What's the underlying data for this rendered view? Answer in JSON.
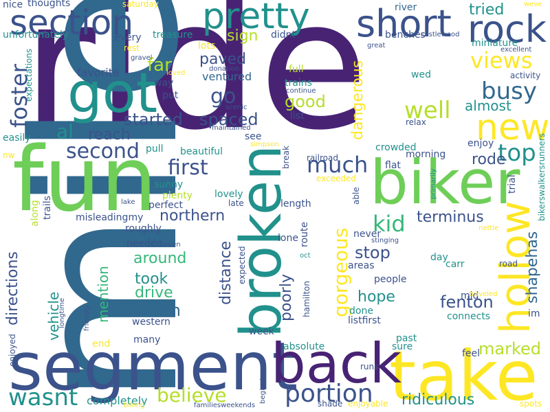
{
  "colors": {
    "dark_purple": "#482374",
    "indigo": "#3b528b",
    "blue": "#31688e",
    "teal_blue": "#2c728e",
    "teal": "#21918c",
    "teal_green": "#1fa088",
    "green": "#35b779",
    "light_green": "#6ece58",
    "lime": "#b5de2b",
    "yellow": "#fde725"
  },
  "words": [
    {
      "text": "ride",
      "color": "dark_purple"
    },
    {
      "text": "mile",
      "color": "blue"
    },
    {
      "text": "fun",
      "color": "light_green"
    },
    {
      "text": "segment",
      "color": "indigo"
    },
    {
      "text": "take",
      "color": "yellow"
    },
    {
      "text": "back",
      "color": "dark_purple"
    },
    {
      "text": "biker",
      "color": "light_green"
    },
    {
      "text": "broken",
      "color": "teal"
    },
    {
      "text": "got",
      "color": "teal"
    },
    {
      "text": "section",
      "color": "indigo"
    },
    {
      "text": "pretty",
      "color": "teal"
    },
    {
      "text": "short",
      "color": "indigo"
    },
    {
      "text": "rock",
      "color": "indigo"
    },
    {
      "text": "new",
      "color": "yellow"
    },
    {
      "text": "hollow",
      "color": "yellow"
    },
    {
      "text": "gorgeous",
      "color": "yellow"
    },
    {
      "text": "foster",
      "color": "indigo"
    },
    {
      "text": "portion",
      "color": "indigo"
    },
    {
      "text": "wasnt",
      "color": "teal"
    },
    {
      "text": "believe",
      "color": "lime"
    },
    {
      "text": "much",
      "color": "indigo"
    },
    {
      "text": "well",
      "color": "lime"
    },
    {
      "text": "second",
      "color": "indigo"
    },
    {
      "text": "first",
      "color": "indigo"
    },
    {
      "text": "busy",
      "color": "blue"
    },
    {
      "text": "top",
      "color": "teal"
    },
    {
      "text": "views",
      "color": "yellow"
    },
    {
      "text": "kid",
      "color": "green"
    },
    {
      "text": "al",
      "color": "teal"
    },
    {
      "text": "reach",
      "color": "indigo"
    },
    {
      "text": "go",
      "color": "indigo"
    },
    {
      "text": "far",
      "color": "lime"
    },
    {
      "text": "paved",
      "color": "indigo"
    },
    {
      "text": "spaced",
      "color": "indigo"
    },
    {
      "text": "started",
      "color": "indigo"
    },
    {
      "text": "northern",
      "color": "indigo"
    },
    {
      "text": "around",
      "color": "green"
    },
    {
      "text": "took",
      "color": "teal"
    },
    {
      "text": "drive",
      "color": "green"
    },
    {
      "text": "south",
      "color": "blue"
    },
    {
      "text": "directions",
      "color": "indigo"
    },
    {
      "text": "vehicle",
      "color": "teal"
    },
    {
      "text": "mention",
      "color": "green"
    },
    {
      "text": "distance",
      "color": "indigo"
    },
    {
      "text": "poorly",
      "color": "indigo"
    },
    {
      "text": "stop",
      "color": "indigo"
    },
    {
      "text": "hope",
      "color": "teal"
    },
    {
      "text": "fenton",
      "color": "indigo"
    },
    {
      "text": "terminus",
      "color": "indigo"
    },
    {
      "text": "shapehas",
      "color": "blue"
    },
    {
      "text": "marked",
      "color": "lime"
    },
    {
      "text": "ridiculous",
      "color": "teal"
    },
    {
      "text": "dangerous",
      "color": "yellow"
    },
    {
      "text": "good",
      "color": "lime"
    },
    {
      "text": "rode",
      "color": "indigo"
    },
    {
      "text": "almost",
      "color": "teal"
    },
    {
      "text": "tried",
      "color": "teal"
    },
    {
      "text": "sign",
      "color": "lime"
    },
    {
      "text": "miniature",
      "color": "teal"
    },
    {
      "text": "ventured",
      "color": "blue"
    },
    {
      "text": "favorite",
      "color": "indigo"
    },
    {
      "text": "thoughts",
      "color": "indigo"
    },
    {
      "text": "nice",
      "color": "indigo"
    },
    {
      "text": "unfortunately",
      "color": "teal"
    },
    {
      "text": "saturday",
      "color": "yellow"
    },
    {
      "text": "river",
      "color": "blue"
    },
    {
      "text": "weve",
      "color": "yellow"
    },
    {
      "text": "benches",
      "color": "indigo"
    },
    {
      "text": "castlewood",
      "color": "indigo"
    },
    {
      "text": "didnt",
      "color": "indigo"
    },
    {
      "text": "treasure",
      "color": "teal"
    },
    {
      "text": "every",
      "color": "indigo"
    },
    {
      "text": "rest",
      "color": "yellow"
    },
    {
      "text": "lots",
      "color": "yellow"
    },
    {
      "text": "great",
      "color": "indigo"
    },
    {
      "text": "excellent",
      "color": "indigo"
    },
    {
      "text": "activity",
      "color": "indigo"
    },
    {
      "text": "wed",
      "color": "teal"
    },
    {
      "text": "relax",
      "color": "indigo"
    },
    {
      "text": "gravel",
      "color": "indigo"
    },
    {
      "text": "loved",
      "color": "yellow"
    },
    {
      "text": "way",
      "color": "indigo"
    },
    {
      "text": "put",
      "color": "indigo"
    },
    {
      "text": "donation",
      "color": "indigo"
    },
    {
      "text": "full",
      "color": "lime"
    },
    {
      "text": "trains",
      "color": "teal"
    },
    {
      "text": "continue",
      "color": "indigo"
    },
    {
      "text": "list",
      "color": "indigo"
    },
    {
      "text": "scenic",
      "color": "indigo"
    },
    {
      "text": "maintained",
      "color": "indigo"
    },
    {
      "text": "see",
      "color": "indigo"
    },
    {
      "text": "simpson",
      "color": "yellow"
    },
    {
      "text": "expectations",
      "color": "teal"
    },
    {
      "text": "easily",
      "color": "teal"
    },
    {
      "text": "nw",
      "color": "yellow"
    },
    {
      "text": "pull",
      "color": "teal"
    },
    {
      "text": "beautiful",
      "color": "teal"
    },
    {
      "text": "railroad",
      "color": "indigo"
    },
    {
      "text": "break",
      "color": "indigo"
    },
    {
      "text": "crowded",
      "color": "teal"
    },
    {
      "text": "morning",
      "color": "indigo"
    },
    {
      "text": "enjoy",
      "color": "indigo"
    },
    {
      "text": "flat",
      "color": "indigo"
    },
    {
      "text": "sunny",
      "color": "teal"
    },
    {
      "text": "plenty",
      "color": "lime"
    },
    {
      "text": "lovely",
      "color": "teal"
    },
    {
      "text": "late",
      "color": "indigo"
    },
    {
      "text": "perfect",
      "color": "indigo"
    },
    {
      "text": "lake",
      "color": "indigo"
    },
    {
      "text": "exceeded",
      "color": "yellow"
    },
    {
      "text": "length",
      "color": "indigo"
    },
    {
      "text": "able",
      "color": "indigo"
    },
    {
      "text": "primarily",
      "color": "teal"
    },
    {
      "text": "trial",
      "color": "indigo"
    },
    {
      "text": "bikerswalkersrunners",
      "color": "teal"
    },
    {
      "text": "along",
      "color": "lime"
    },
    {
      "text": "trails",
      "color": "indigo"
    },
    {
      "text": "misleadingmy",
      "color": "indigo"
    },
    {
      "text": "roughly",
      "color": "indigo"
    },
    {
      "text": "needed",
      "color": "indigo"
    },
    {
      "text": "even",
      "color": "indigo"
    },
    {
      "text": "lone",
      "color": "indigo"
    },
    {
      "text": "route",
      "color": "indigo"
    },
    {
      "text": "never",
      "color": "indigo"
    },
    {
      "text": "stinging",
      "color": "indigo"
    },
    {
      "text": "nettle",
      "color": "yellow"
    },
    {
      "text": "road",
      "color": "indigo"
    },
    {
      "text": "carr",
      "color": "teal"
    },
    {
      "text": "day",
      "color": "teal"
    },
    {
      "text": "areas",
      "color": "indigo"
    },
    {
      "text": "expected",
      "color": "indigo"
    },
    {
      "text": "oct",
      "color": "teal"
    },
    {
      "text": "people",
      "color": "indigo"
    },
    {
      "text": "mid",
      "color": "indigo"
    },
    {
      "text": "traveled",
      "color": "yellow"
    },
    {
      "text": "connects",
      "color": "teal"
    },
    {
      "text": "im",
      "color": "indigo"
    },
    {
      "text": "done",
      "color": "teal"
    },
    {
      "text": "listfirst",
      "color": "indigo"
    },
    {
      "text": "hamilton",
      "color": "indigo"
    },
    {
      "text": "western",
      "color": "indigo"
    },
    {
      "text": "week",
      "color": "indigo"
    },
    {
      "text": "many",
      "color": "indigo"
    },
    {
      "text": "end",
      "color": "yellow"
    },
    {
      "text": "friendly",
      "color": "indigo"
    },
    {
      "text": "longtime",
      "color": "indigo"
    },
    {
      "text": "enjoyed",
      "color": "indigo"
    },
    {
      "text": "past",
      "color": "teal"
    },
    {
      "text": "sure",
      "color": "teal"
    },
    {
      "text": "absolute",
      "color": "teal"
    },
    {
      "text": "feel",
      "color": "indigo"
    },
    {
      "text": "runs",
      "color": "indigo"
    },
    {
      "text": "beginning",
      "color": "indigo"
    },
    {
      "text": "completely",
      "color": "teal"
    },
    {
      "text": "biking",
      "color": "yellow"
    },
    {
      "text": "familiesweekends",
      "color": "indigo"
    },
    {
      "text": "shade",
      "color": "indigo"
    },
    {
      "text": "enjoyable",
      "color": "yellow"
    },
    {
      "text": "spots",
      "color": "yellow"
    }
  ]
}
